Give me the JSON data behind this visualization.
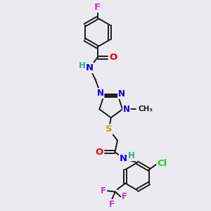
{
  "background_color": "#eaeaf0",
  "bond_color": "#1a1a1a",
  "bond_width": 1.4,
  "atom_colors": {
    "N": "#0000ee",
    "O": "#ee0000",
    "S": "#bbaa00",
    "F": "#cc33cc",
    "Cl": "#22cc22",
    "H": "#33aa88",
    "C": "#1a1a1a"
  },
  "font_size": 8.5,
  "fig_width": 3.0,
  "fig_height": 3.0,
  "dpi": 100
}
